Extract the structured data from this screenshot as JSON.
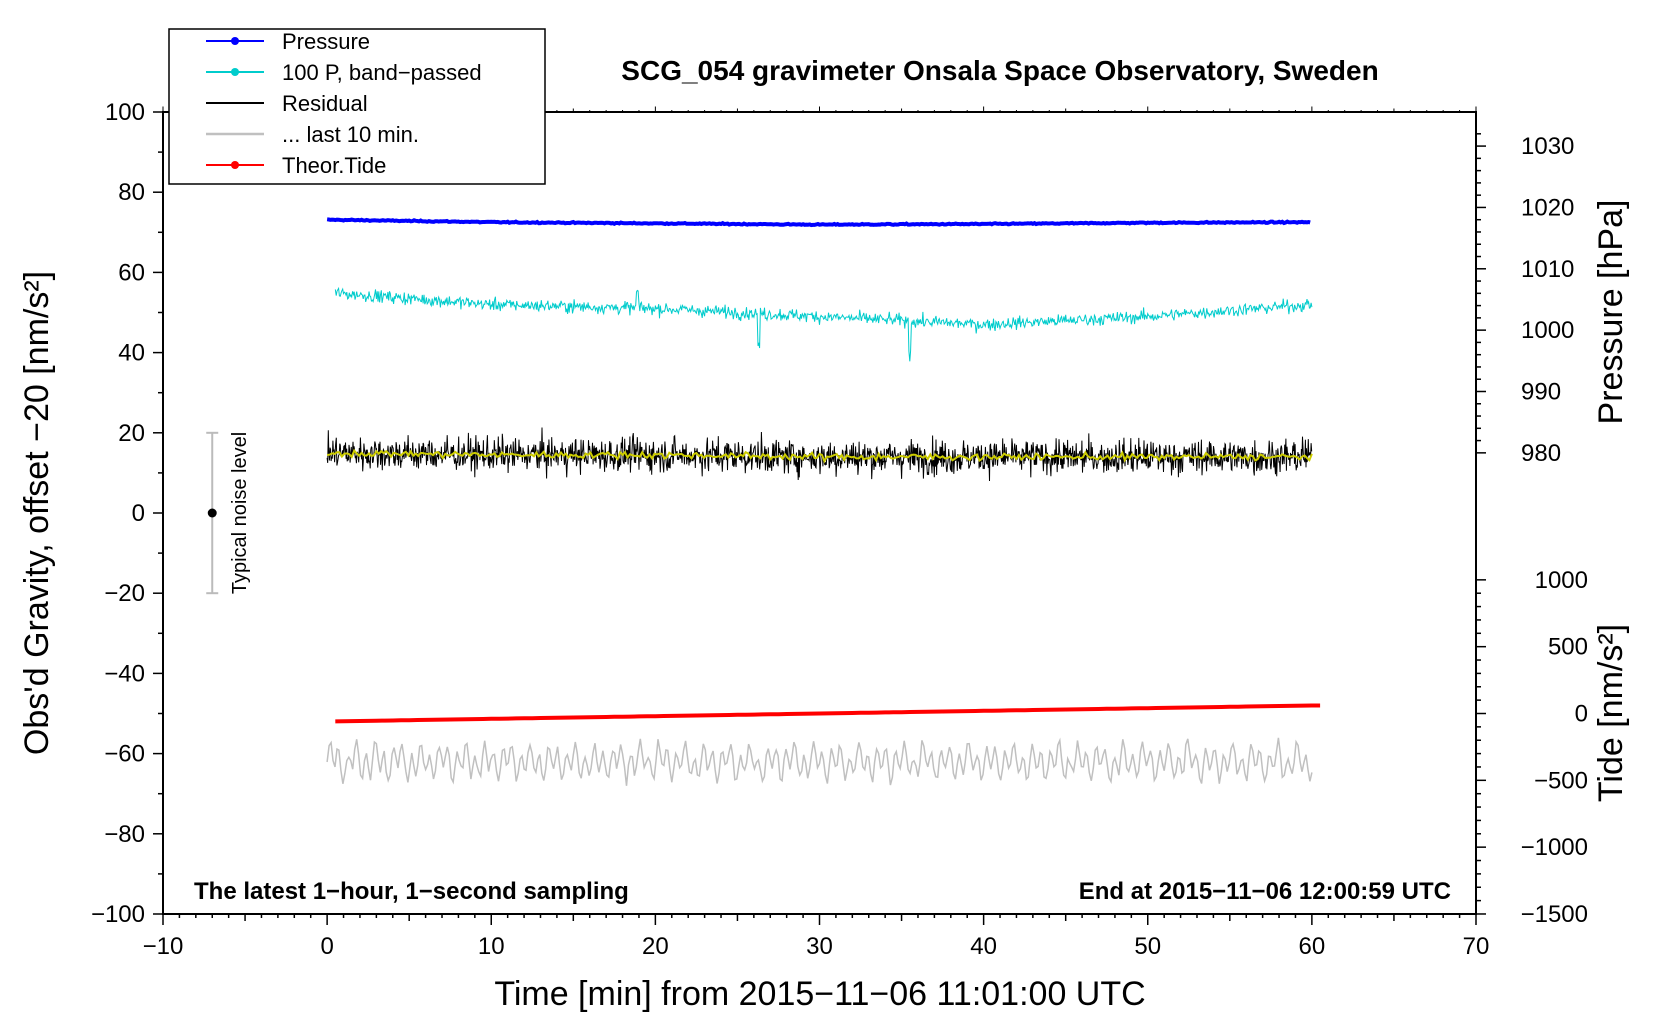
{
  "chart_data": {
    "type": "line",
    "title": "SCG_054 gravimeter Onsala Space Observatory, Sweden",
    "xlabel": "Time [min] from 2015−11−06 11:01:00 UTC",
    "ylabel": "Obs'd Gravity, offset −20 [nm/s²]",
    "y2label_pressure": "Pressure [hPa]",
    "y2label_tide": "Tide [nm/s²]",
    "xlim": [
      -10,
      70
    ],
    "ylim": [
      -100,
      100
    ],
    "xticks": [
      -10,
      0,
      10,
      20,
      30,
      40,
      50,
      60,
      70
    ],
    "xtick_labels": [
      "−10",
      "0",
      "10",
      "20",
      "30",
      "40",
      "50",
      "60",
      "70"
    ],
    "yticks": [
      -100,
      -80,
      -60,
      -40,
      -20,
      0,
      20,
      40,
      60,
      80,
      100
    ],
    "ytick_labels": [
      "−100",
      "−80",
      "−60",
      "−40",
      "−20",
      "0",
      "20",
      "40",
      "60",
      "80",
      "100"
    ],
    "pressure_axis": {
      "ticks": [
        980,
        990,
        1000,
        1010,
        1020,
        1030
      ],
      "tick_labels": [
        "980",
        "990",
        "1000",
        "1010",
        "1020",
        "1030"
      ],
      "y_at_980": 15,
      "y_per_hpa": 1.53
    },
    "tide_axis": {
      "ticks": [
        -1500,
        -1000,
        -500,
        0,
        500,
        1000
      ],
      "tick_labels": [
        "−1500",
        "−1000",
        "−500",
        "0",
        "500",
        "1000"
      ],
      "y_at_0": -50,
      "y_per_unit": 0.03333
    },
    "legend": {
      "placement": "top-left",
      "entries": [
        {
          "label": "Pressure",
          "color": "#0000ff",
          "marker": true
        },
        {
          "label": "100 P, band−passed",
          "color": "#00cccc",
          "marker": true
        },
        {
          "label": "Residual",
          "color": "#000000",
          "marker": false
        },
        {
          "label": "... last 10 min.",
          "color": "#c0c0c0",
          "marker": false
        },
        {
          "label": "Theor.Tide",
          "color": "#ff0000",
          "marker": true
        }
      ]
    },
    "series": [
      {
        "name": "Pressure",
        "color": "#0000ff",
        "unit": "hPa",
        "x": [
          0,
          10,
          20,
          30,
          40,
          50,
          60
        ],
        "values": [
          1018.0,
          1017.6,
          1017.4,
          1017.2,
          1017.3,
          1017.5,
          1017.6
        ]
      },
      {
        "name": "100 P, band-passed",
        "color": "#00cccc",
        "unit": "nm/s²",
        "x": [
          0,
          10,
          20,
          30,
          40,
          50,
          60
        ],
        "values": [
          55,
          52,
          51,
          49,
          47,
          49,
          52
        ]
      },
      {
        "name": "Residual",
        "color": "#000000",
        "unit": "nm/s²",
        "x": [
          0,
          10,
          20,
          30,
          40,
          50,
          60
        ],
        "values": [
          15,
          14.5,
          14.5,
          14,
          14,
          14,
          14
        ]
      },
      {
        "name": "Residual smoothed",
        "color": "#cccc00",
        "unit": "nm/s²",
        "x": [
          0,
          10,
          20,
          30,
          40,
          50,
          60
        ],
        "values": [
          15,
          14.5,
          14.5,
          14,
          14,
          14,
          14
        ]
      },
      {
        "name": "... last 10 min.",
        "color": "#c0c0c0",
        "unit": "nm/s²",
        "x": [
          0,
          60
        ],
        "values": [
          -62,
          -62
        ]
      },
      {
        "name": "Theor.Tide",
        "color": "#ff0000",
        "unit": "nm/s²",
        "x": [
          0,
          60
        ],
        "values": [
          -52,
          -48
        ]
      }
    ],
    "noise_bar": {
      "label": "Typical noise level",
      "x": -7,
      "center": 0,
      "low": -20,
      "high": 20
    },
    "annotations": {
      "left": "The latest 1−hour, 1−second sampling",
      "right": "End at 2015−11−06 12:00:59 UTC"
    }
  }
}
